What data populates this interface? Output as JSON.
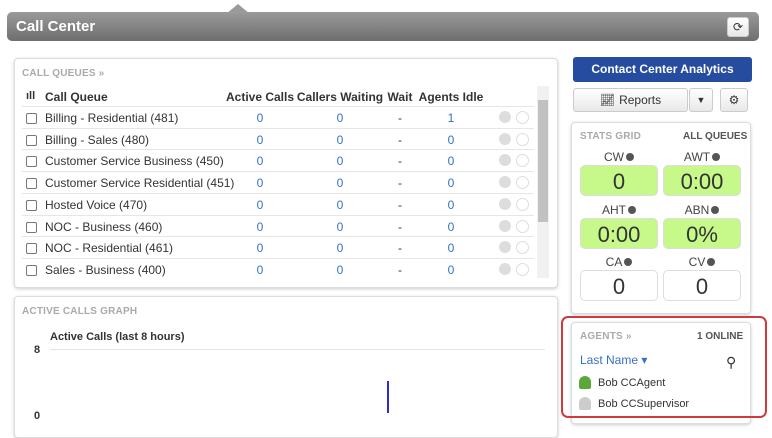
{
  "header": {
    "title": "Call Center"
  },
  "call_queues": {
    "title": "CALL QUEUES »",
    "columns": [
      "Call Queue",
      "Active Calls",
      "Callers Waiting",
      "Wait",
      "Agents Idle"
    ],
    "rows": [
      [
        "Billing - Residential (481)",
        0,
        0,
        "-",
        1
      ],
      [
        "Billing - Sales (480)",
        0,
        0,
        "-",
        0
      ],
      [
        "Customer Service Business (450)",
        0,
        0,
        "-",
        0
      ],
      [
        "Customer Service Residential (451)",
        0,
        0,
        "-",
        0
      ],
      [
        "Hosted Voice (470)",
        0,
        0,
        "-",
        0
      ],
      [
        "NOC - Business (460)",
        0,
        0,
        "-",
        0
      ],
      [
        "NOC - Residential (461)",
        0,
        0,
        "-",
        0
      ],
      [
        "Sales - Business (400)",
        0,
        0,
        "-",
        0
      ]
    ]
  },
  "graph": {
    "title": "ACTIVE CALLS GRAPH",
    "chart_title": "Active Calls (last 8 hours)",
    "y_top": 8,
    "y_bottom": 0
  },
  "analytics_button": "Contact Center Analytics",
  "reports_button": "Reports",
  "stats": {
    "title": "STATS GRID",
    "scope": "ALL QUEUES",
    "cells": [
      {
        "label": "CW",
        "value": "0",
        "color": "#c6f98a"
      },
      {
        "label": "AWT",
        "value": "0:00",
        "color": "#c6f98a"
      },
      {
        "label": "AHT",
        "value": "0:00",
        "color": "#c6f98a"
      },
      {
        "label": "ABN",
        "value": "0%",
        "color": "#c6f98a"
      },
      {
        "label": "CA",
        "value": "0",
        "color": "#ffffff"
      },
      {
        "label": "CV",
        "value": "0",
        "color": "#ffffff"
      }
    ]
  },
  "agents": {
    "title": "AGENTS »",
    "online": "1 ONLINE",
    "sort": "Last Name",
    "list": [
      {
        "name": "Bob CCAgent",
        "icon_color": "#5aa83a"
      },
      {
        "name": "Bob CCSupervisor",
        "icon_color": "#cccccc"
      }
    ]
  }
}
